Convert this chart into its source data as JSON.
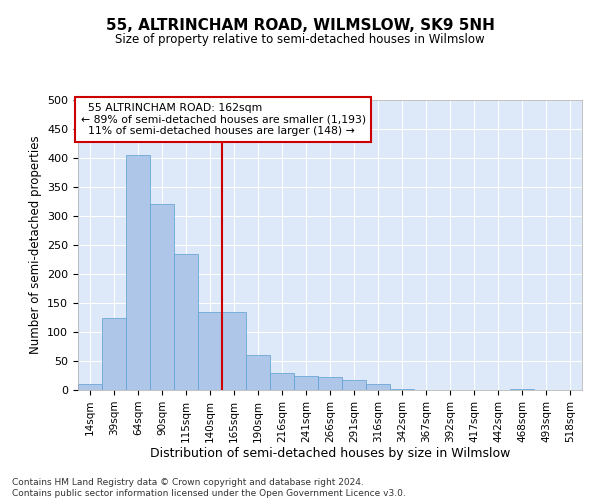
{
  "title1": "55, ALTRINCHAM ROAD, WILMSLOW, SK9 5NH",
  "title2": "Size of property relative to semi-detached houses in Wilmslow",
  "xlabel": "Distribution of semi-detached houses by size in Wilmslow",
  "ylabel": "Number of semi-detached properties",
  "footnote": "Contains HM Land Registry data © Crown copyright and database right 2024.\nContains public sector information licensed under the Open Government Licence v3.0.",
  "bin_labels": [
    "14sqm",
    "39sqm",
    "64sqm",
    "90sqm",
    "115sqm",
    "140sqm",
    "165sqm",
    "190sqm",
    "216sqm",
    "241sqm",
    "266sqm",
    "291sqm",
    "316sqm",
    "342sqm",
    "367sqm",
    "392sqm",
    "417sqm",
    "442sqm",
    "468sqm",
    "493sqm",
    "518sqm"
  ],
  "bar_values": [
    10,
    125,
    405,
    320,
    235,
    135,
    135,
    60,
    30,
    25,
    22,
    17,
    10,
    2,
    0,
    0,
    0,
    0,
    1,
    0,
    0
  ],
  "bar_color": "#aec6e8",
  "bar_edge_color": "#5a9fd4",
  "property_label": "55 ALTRINCHAM ROAD: 162sqm",
  "pct_smaller": 89,
  "n_smaller": 1193,
  "pct_larger": 11,
  "n_larger": 148,
  "red_line_color": "#cc0000",
  "annotation_box_color": "#cc0000",
  "ylim": [
    0,
    500
  ],
  "background_color": "#dde8f8",
  "grid_color": "#ffffff"
}
